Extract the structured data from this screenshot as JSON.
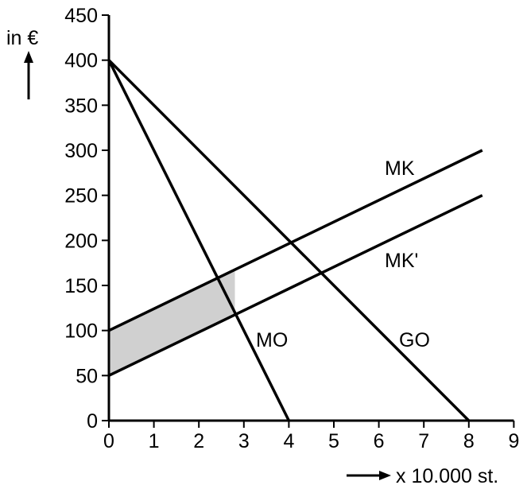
{
  "chart_data": {
    "type": "line",
    "ylabel": "in €",
    "xlabel": "x 10.000 st.",
    "xlim": [
      0,
      9
    ],
    "ylim": [
      0,
      450
    ],
    "x_ticks": [
      "0",
      "1",
      "2",
      "3",
      "4",
      "5",
      "6",
      "7",
      "8",
      "9"
    ],
    "y_ticks": [
      "0",
      "50",
      "100",
      "150",
      "200",
      "250",
      "300",
      "350",
      "400",
      "450"
    ],
    "grid": false,
    "series": [
      {
        "name": "MO",
        "x": [
          0,
          4
        ],
        "y": [
          400,
          0
        ]
      },
      {
        "name": "GO",
        "x": [
          0,
          8
        ],
        "y": [
          400,
          0
        ]
      },
      {
        "name": "MK",
        "x": [
          0,
          8.3
        ],
        "y": [
          100,
          300
        ]
      },
      {
        "name": "MK'",
        "x": [
          0,
          8.3
        ],
        "y": [
          50,
          250
        ]
      }
    ],
    "shaded_region": {
      "color": "#d0d0d0",
      "points": [
        [
          0,
          100
        ],
        [
          2.8,
          167.5
        ],
        [
          2.8,
          117.5
        ],
        [
          0,
          50
        ]
      ]
    },
    "colors": {
      "line": "#000000",
      "shade": "#d0d0d0"
    }
  }
}
